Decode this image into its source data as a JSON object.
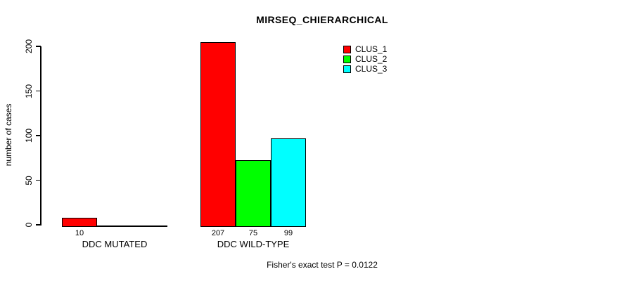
{
  "figure": {
    "background": "#ffffff",
    "axis_color": "#000000"
  },
  "chart_data": {
    "type": "bar",
    "title": "MIRSEQ_CHIERARCHICAL",
    "ylabel": "number of cases",
    "xlabel": "",
    "ylim": [
      0,
      200
    ],
    "yticks": [
      0,
      50,
      100,
      150,
      200
    ],
    "grid": false,
    "legend_position": "top-right",
    "categories": [
      "DDC MUTATED",
      "DDC WILD-TYPE"
    ],
    "series": [
      {
        "name": "CLUS_1",
        "color": "#ff0000",
        "values": [
          10,
          207
        ]
      },
      {
        "name": "CLUS_2",
        "color": "#00ff00",
        "values": [
          0,
          75
        ]
      },
      {
        "name": "CLUS_3",
        "color": "#00ffff",
        "values": [
          0,
          99
        ]
      }
    ],
    "bar_labels": [
      [
        "10",
        "",
        ""
      ],
      [
        "207",
        "75",
        "99"
      ]
    ],
    "annotation": "Fisher's exact test P = 0.0122"
  }
}
